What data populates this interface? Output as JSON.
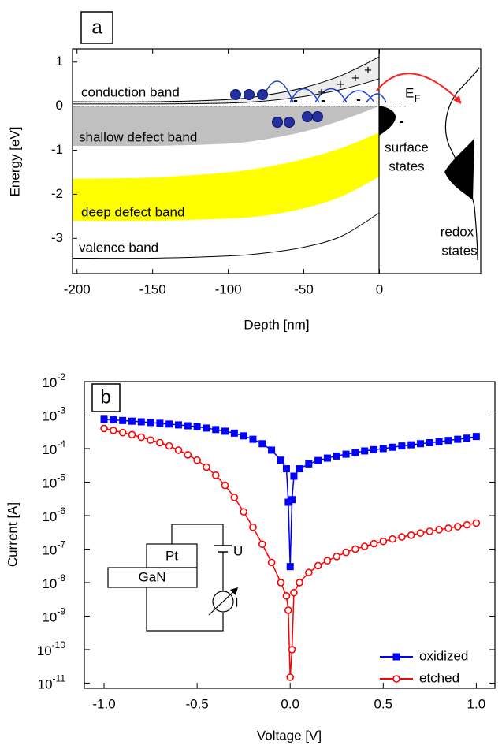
{
  "chart_data": [
    {
      "type": "band-diagram",
      "panel": "a",
      "xlabel": "Depth [nm]",
      "ylabel": "Energy [eV]",
      "xlim": [
        -203,
        67
      ],
      "ylim": [
        -3.8,
        1.3
      ],
      "xticks": [
        -200,
        -150,
        -100,
        -50,
        0
      ],
      "yticks": [
        1,
        0,
        -1,
        -2,
        -3
      ],
      "fermi_level": 0,
      "bands": [
        {
          "name": "conduction band",
          "color": "#ececec",
          "x": [
            -203,
            -150,
            -100,
            -75,
            -50,
            -25,
            0
          ],
          "upper": [
            0.1,
            0.1,
            0.15,
            0.25,
            0.42,
            0.7,
            1.12
          ],
          "lower": [
            0.05,
            0.05,
            0.07,
            0.12,
            0.22,
            0.38,
            0.62
          ]
        },
        {
          "name": "shallow defect band",
          "color": "#c0c0c0",
          "x": [
            -203,
            -150,
            -100,
            -75,
            -50,
            -25,
            0
          ],
          "upper": [
            0,
            0,
            0,
            0,
            0,
            0,
            0
          ],
          "lower": [
            -0.9,
            -0.9,
            -0.85,
            -0.75,
            -0.58,
            -0.32,
            0
          ]
        },
        {
          "name": "deep defect band",
          "color": "#ffff00",
          "x": [
            -203,
            -150,
            -100,
            -75,
            -50,
            -25,
            0
          ],
          "upper": [
            -1.65,
            -1.62,
            -1.5,
            -1.38,
            -1.2,
            -0.95,
            -0.6
          ],
          "lower": [
            -2.6,
            -2.6,
            -2.55,
            -2.48,
            -2.32,
            -2.05,
            -1.6
          ]
        }
      ],
      "lines": [
        {
          "name": "valence band",
          "color": "#000000",
          "x": [
            -203,
            -150,
            -100,
            -75,
            -50,
            -25,
            0
          ],
          "values": [
            -3.45,
            -3.45,
            -3.4,
            -3.33,
            -3.2,
            -2.95,
            -2.42
          ]
        }
      ],
      "annotations": {
        "ef_main": "E",
        "ef_sub": "F",
        "surface_1": "surface",
        "surface_2": "states",
        "redox_1": "redox",
        "redox_2": "states",
        "plus": "+",
        "minus": "-"
      }
    },
    {
      "type": "line",
      "panel": "b",
      "xlabel": "Voltage [V]",
      "ylabel": "Current [A]",
      "log_y": true,
      "xlim": [
        -1.106,
        1.1
      ],
      "ylim": [
        7e-12,
        0.01
      ],
      "xticks": [
        {
          "value": -1,
          "label": "-1.0"
        },
        -0.5,
        {
          "value": 0,
          "label": "0.0"
        },
        0.5,
        {
          "value": 1,
          "label": "1.0"
        }
      ],
      "yticks": [
        {
          "value": 0.01,
          "label": "10",
          "exponent": "-2"
        },
        {
          "value": 0.001,
          "label": "10",
          "exponent": "-3"
        },
        {
          "value": 0.0001,
          "label": "10",
          "exponent": "-4"
        },
        {
          "value": 1e-05,
          "label": "10",
          "exponent": "-5"
        },
        {
          "value": 1e-06,
          "label": "10",
          "exponent": "-6"
        },
        {
          "value": 1e-07,
          "label": "10",
          "exponent": "-7"
        },
        {
          "value": 1e-08,
          "label": "10",
          "exponent": "-8"
        },
        {
          "value": 1e-09,
          "label": "10",
          "exponent": "-9"
        },
        {
          "value": 1e-10,
          "label": "10",
          "exponent": "-10"
        },
        {
          "value": 1e-11,
          "label": "10",
          "exponent": "-11"
        }
      ],
      "legend": "lower right",
      "inset_labels": [
        "Pt",
        "GaN",
        "U",
        "I"
      ],
      "x": [
        -1,
        -0.95,
        -0.9,
        -0.85,
        -0.8,
        -0.75,
        -0.7,
        -0.65,
        -0.6,
        -0.55,
        -0.5,
        -0.45,
        -0.4,
        -0.35,
        -0.3,
        -0.25,
        -0.2,
        -0.15,
        -0.1,
        -0.05,
        -0.02,
        -0.01,
        0,
        0.01,
        0.02,
        0.05,
        0.1,
        0.15,
        0.2,
        0.25,
        0.3,
        0.35,
        0.4,
        0.45,
        0.5,
        0.55,
        0.6,
        0.65,
        0.7,
        0.75,
        0.8,
        0.85,
        0.9,
        0.95,
        1
      ],
      "series": [
        {
          "name": "oxidized",
          "color": "#0000ff",
          "marker": "square",
          "values": [
            0.00075,
            0.00072,
            0.00069,
            0.00066,
            0.00063,
            0.0006,
            0.00057,
            0.00054,
            0.00051,
            0.00048,
            0.00045,
            0.00041,
            0.00037,
            0.00033,
            0.00029,
            0.00024,
            0.00019,
            0.00014,
            9e-05,
            4.5e-05,
            2.5e-05,
            2.5e-06,
            3e-08,
            3e-06,
            1.5e-05,
            2.5e-05,
            3.5e-05,
            4.4e-05,
            5.2e-05,
            6e-05,
            6.8e-05,
            7.6e-05,
            8.5e-05,
            9.3e-05,
            0.0001,
            0.00011,
            0.00012,
            0.00013,
            0.00014,
            0.00015,
            0.00016,
            0.000175,
            0.00019,
            0.000205,
            0.00023
          ]
        },
        {
          "name": "etched",
          "color": "#ff0000",
          "marker": "open-circle",
          "values": [
            0.0004,
            0.00035,
            0.0003,
            0.00026,
            0.00022,
            0.00018,
            0.00015,
            0.00012,
            9e-05,
            6.5e-05,
            4.5e-05,
            2.8e-05,
            1.6e-05,
            8e-06,
            3.5e-06,
            1.3e-06,
            4.5e-07,
            1.4e-07,
            4e-08,
            1e-08,
            4e-09,
            1.5e-09,
            1.5e-11,
            1e-10,
            5e-09,
            1e-08,
            2e-08,
            3.2e-08,
            4.5e-08,
            6e-08,
            8e-08,
            1e-07,
            1.2e-07,
            1.45e-07,
            1.7e-07,
            2e-07,
            2.3e-07,
            2.6e-07,
            3e-07,
            3.4e-07,
            3.8e-07,
            4.2e-07,
            4.7e-07,
            5.3e-07,
            6e-07
          ]
        }
      ]
    }
  ]
}
